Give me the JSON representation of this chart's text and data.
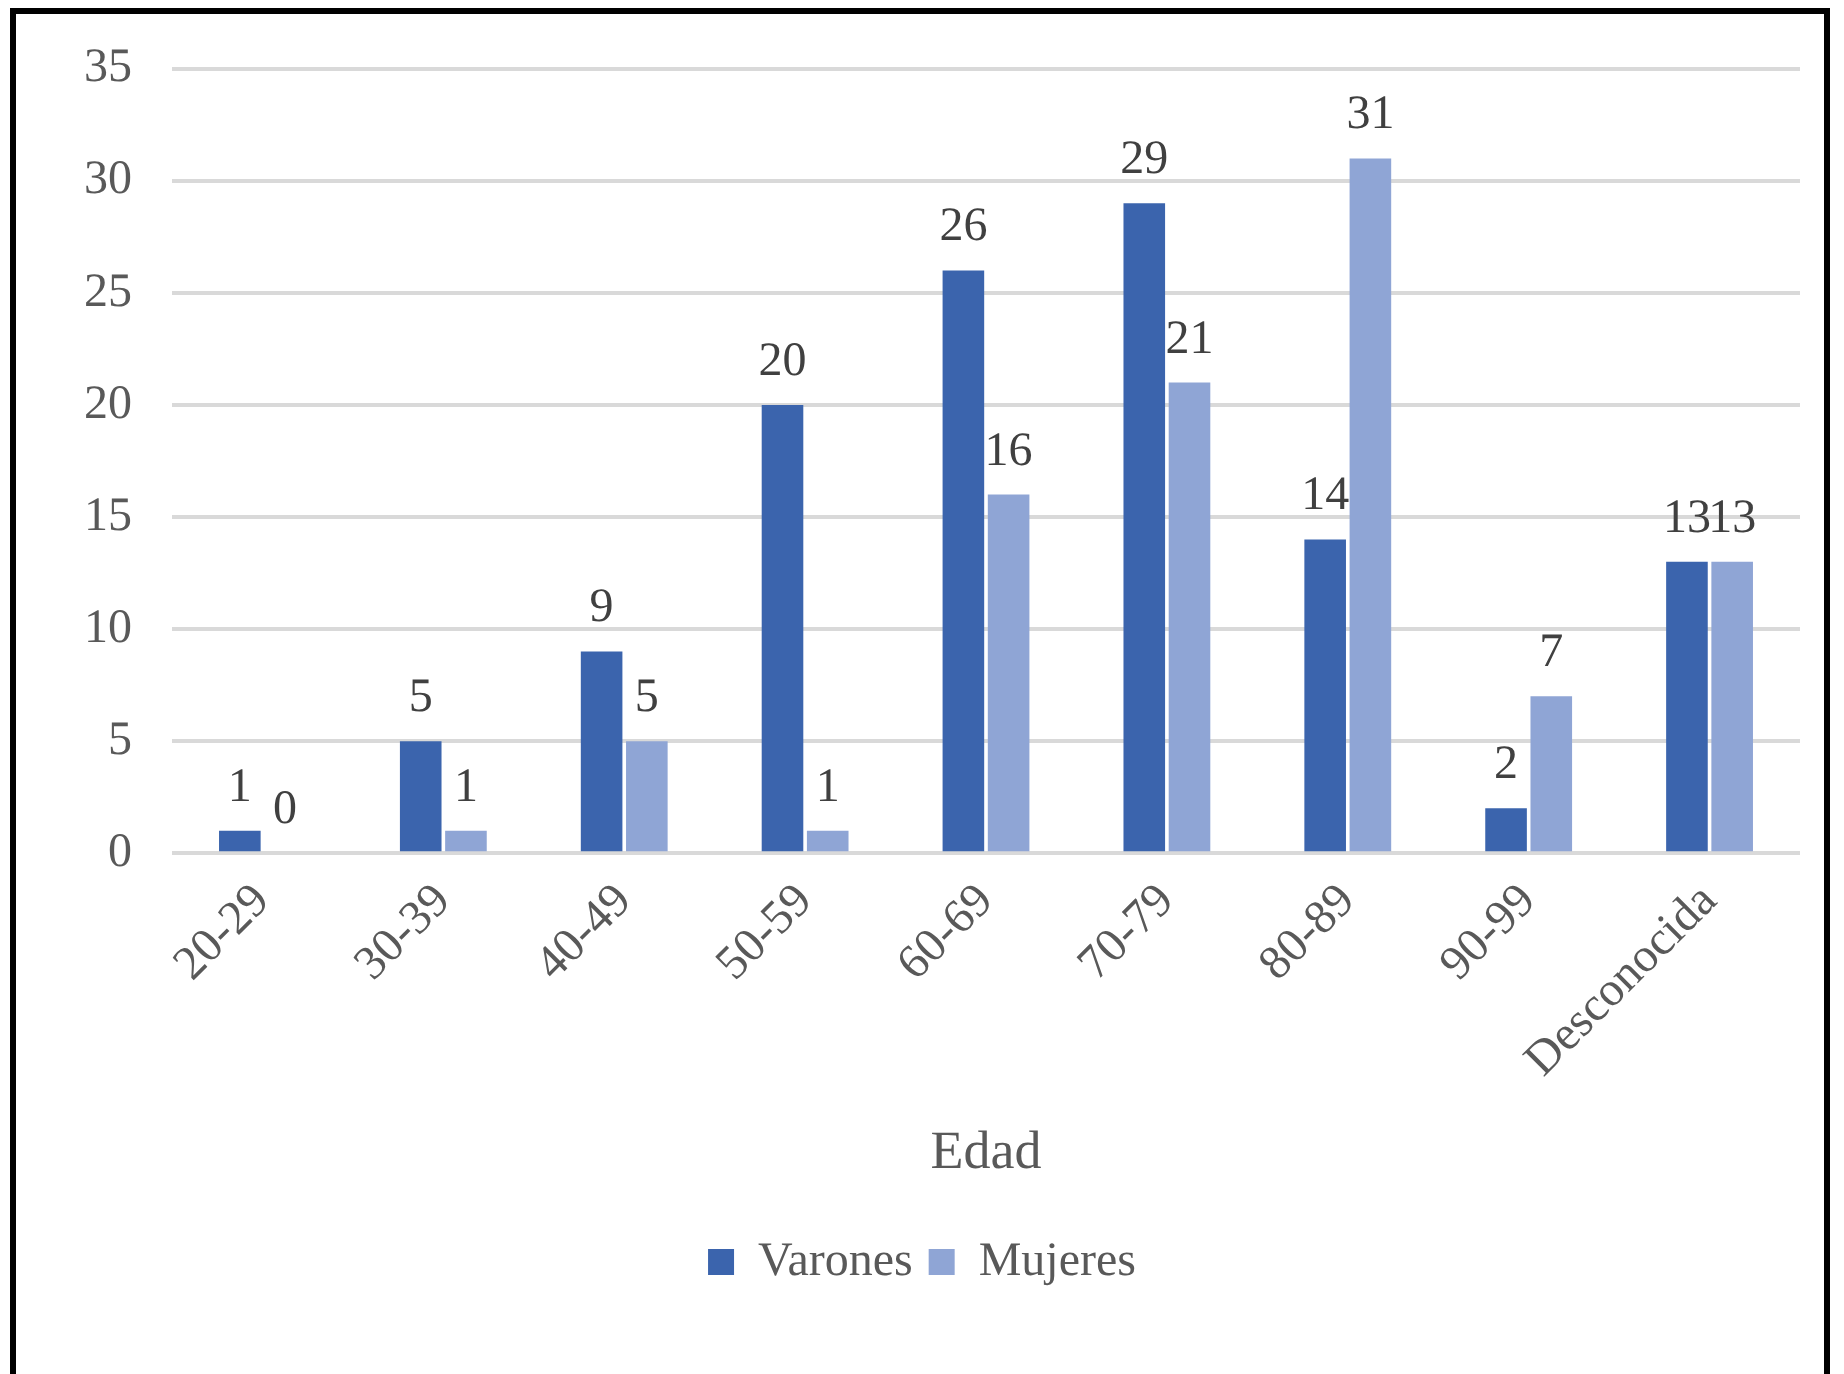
{
  "chart_data": {
    "type": "bar",
    "xlabel": "Edad",
    "categories": [
      "20-29",
      "30-39",
      "40-49",
      "50-59",
      "60-69",
      "70-79",
      "80-89",
      "90-99",
      "Desconocida"
    ],
    "series": [
      {
        "name": "Varones",
        "color": "#3b64ad",
        "values": [
          1,
          5,
          9,
          20,
          26,
          29,
          14,
          2,
          13
        ]
      },
      {
        "name": "Mujeres",
        "color": "#8fa5d5",
        "values": [
          0,
          1,
          5,
          1,
          16,
          21,
          31,
          7,
          13
        ]
      }
    ],
    "ylim": [
      0,
      35
    ],
    "yticks": [
      0,
      5,
      10,
      15,
      20,
      25,
      30,
      35
    ],
    "grid": "y",
    "legend": "bottom",
    "data_labels": true
  }
}
